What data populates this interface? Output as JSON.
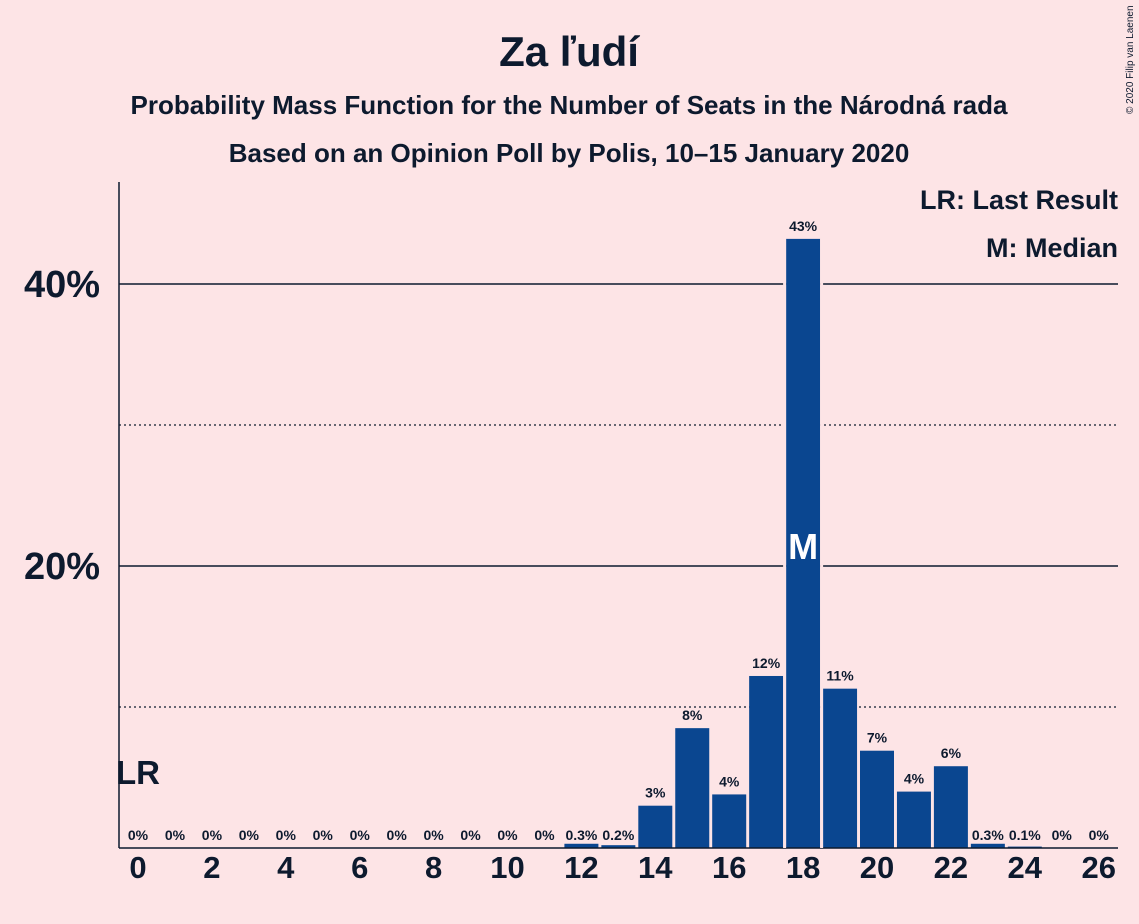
{
  "title": "Za ľudí",
  "subtitle1": "Probability Mass Function for the Number of Seats in the Národná rada",
  "subtitle2": "Based on an Opinion Poll by Polis, 10–15 January 2020",
  "copyright": "© 2020 Filip van Laenen",
  "legend": {
    "lr": "LR: Last Result",
    "median": "M: Median"
  },
  "markers": {
    "lr_label": "LR",
    "lr_seat": 0,
    "median_label": "M",
    "median_seat": 18
  },
  "colors": {
    "background": "#FDE4E6",
    "bar": "#0A4690",
    "text": "#0D1A2E"
  },
  "chart_data": {
    "type": "bar",
    "x": [
      0,
      1,
      2,
      3,
      4,
      5,
      6,
      7,
      8,
      9,
      10,
      11,
      12,
      13,
      14,
      15,
      16,
      17,
      18,
      19,
      20,
      21,
      22,
      23,
      24,
      25,
      26
    ],
    "values": [
      0,
      0,
      0,
      0,
      0,
      0,
      0,
      0,
      0,
      0,
      0,
      0,
      0.3,
      0.2,
      3,
      8.5,
      3.8,
      12.2,
      43.2,
      11.3,
      6.9,
      4,
      5.8,
      0.3,
      0.1,
      0,
      0
    ],
    "value_labels": [
      "0%",
      "0%",
      "0%",
      "0%",
      "0%",
      "0%",
      "0%",
      "0%",
      "0%",
      "0%",
      "0%",
      "0%",
      "0.3%",
      "0.2%",
      "3%",
      "8%",
      "4%",
      "12%",
      "43%",
      "11%",
      "7%",
      "4%",
      "6%",
      "0.3%",
      "0.1%",
      "0%",
      "0%"
    ],
    "x_tick_labels": [
      "0",
      "2",
      "4",
      "6",
      "8",
      "10",
      "12",
      "14",
      "16",
      "18",
      "20",
      "22",
      "24",
      "26"
    ],
    "y_ticks": [
      {
        "value": 10,
        "style": "dotted",
        "label": ""
      },
      {
        "value": 20,
        "style": "solid",
        "label": "20%"
      },
      {
        "value": 30,
        "style": "dotted",
        "label": ""
      },
      {
        "value": 40,
        "style": "solid",
        "label": "40%"
      }
    ],
    "ylim": [
      0,
      47
    ],
    "xlabel": "",
    "ylabel": "",
    "grid": true,
    "legend_position": "top-right"
  }
}
